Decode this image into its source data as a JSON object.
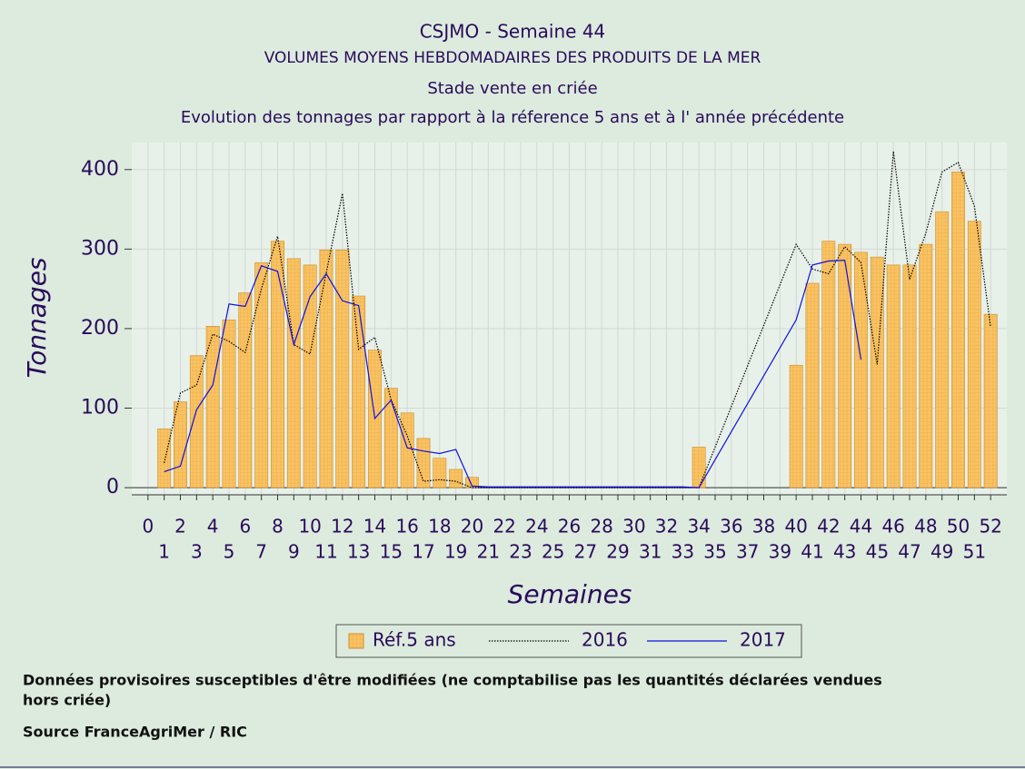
{
  "chart_data": {
    "type": "bar",
    "title": "CSJMO - Semaine 44",
    "subtitles": [
      "VOLUMES MOYENS HEBDOMADAIRES DES PRODUITS DE LA MER",
      "Stade vente en criée",
      "Evolution des tonnages par rapport à la réference 5 ans et à l' année précédente"
    ],
    "x_label": "Semaines",
    "y_label": "Tonnages",
    "x": [
      1,
      2,
      3,
      4,
      5,
      6,
      7,
      8,
      9,
      10,
      11,
      12,
      13,
      14,
      15,
      16,
      17,
      18,
      19,
      20,
      21,
      22,
      23,
      24,
      25,
      26,
      27,
      28,
      29,
      30,
      31,
      32,
      33,
      34,
      35,
      36,
      37,
      38,
      39,
      40,
      41,
      42,
      43,
      44,
      45,
      46,
      47,
      48,
      49,
      50,
      51,
      52
    ],
    "series": [
      {
        "name": "Réf.5 ans",
        "type": "bar",
        "color": "#fbc263",
        "values": [
          74,
          108,
          166,
          203,
          211,
          245,
          283,
          310,
          288,
          280,
          299,
          299,
          241,
          173,
          125,
          94,
          62,
          37,
          23,
          13,
          0,
          0,
          0,
          0,
          0,
          0,
          0,
          0,
          0,
          0,
          0,
          0,
          0,
          51,
          0,
          0,
          0,
          0,
          0,
          154,
          257,
          310,
          306,
          296,
          290,
          280,
          280,
          306,
          347,
          397,
          335,
          218
        ]
      },
      {
        "name": "2016",
        "type": "line",
        "color": "#000000",
        "dash": "dotted",
        "x": [
          1,
          2,
          3,
          4,
          5,
          6,
          7,
          8,
          9,
          10,
          11,
          12,
          13,
          14,
          15,
          16,
          17,
          18,
          19,
          20,
          21,
          22,
          23,
          24,
          25,
          26,
          27,
          28,
          29,
          30,
          31,
          32,
          33,
          34,
          40,
          41,
          42,
          43,
          44,
          45,
          46,
          47,
          48,
          49,
          50,
          51,
          52
        ],
        "values": [
          31,
          119,
          129,
          193,
          184,
          170,
          250,
          316,
          180,
          168,
          270,
          370,
          174,
          189,
          111,
          65,
          8,
          10,
          8,
          0,
          0,
          0,
          0,
          0,
          0,
          0,
          0,
          0,
          0,
          0,
          0,
          0,
          0,
          0,
          306,
          275,
          269,
          303,
          283,
          155,
          423,
          262,
          320,
          397,
          409,
          354,
          202
        ]
      },
      {
        "name": "2017",
        "type": "line",
        "color": "#1010e0",
        "dash": "solid",
        "x": [
          1,
          2,
          3,
          4,
          5,
          6,
          7,
          8,
          9,
          10,
          11,
          12,
          13,
          14,
          15,
          16,
          17,
          18,
          19,
          20,
          21,
          22,
          23,
          24,
          25,
          26,
          27,
          28,
          29,
          30,
          31,
          32,
          33,
          34,
          40,
          41,
          42,
          43,
          44
        ],
        "values": [
          20,
          27,
          98,
          129,
          231,
          228,
          279,
          272,
          180,
          240,
          269,
          235,
          229,
          87,
          110,
          50,
          46,
          43,
          48,
          2,
          1,
          1,
          1,
          1,
          1,
          1,
          1,
          1,
          1,
          1,
          1,
          1,
          1,
          0,
          211,
          280,
          285,
          286,
          161
        ]
      }
    ],
    "xlim": [
      -1,
      53
    ],
    "xticks": [
      0,
      1,
      2,
      3,
      4,
      5,
      6,
      7,
      8,
      9,
      10,
      11,
      12,
      13,
      14,
      15,
      16,
      17,
      18,
      19,
      20,
      21,
      22,
      23,
      24,
      25,
      26,
      27,
      28,
      29,
      30,
      31,
      32,
      33,
      34,
      35,
      36,
      37,
      38,
      39,
      40,
      41,
      42,
      43,
      44,
      45,
      46,
      47,
      48,
      49,
      50,
      51,
      52
    ],
    "ylim": [
      -9,
      434
    ],
    "yticks": [
      0,
      100,
      200,
      300,
      400
    ],
    "grid": true,
    "legend": "bottom",
    "footnotes": [
      "Données provisoires susceptibles d'être modifiées (ne comptabilise pas les quantités déclarées vendues",
      "hors criée)",
      "Source FranceAgriMer / RIC"
    ]
  }
}
